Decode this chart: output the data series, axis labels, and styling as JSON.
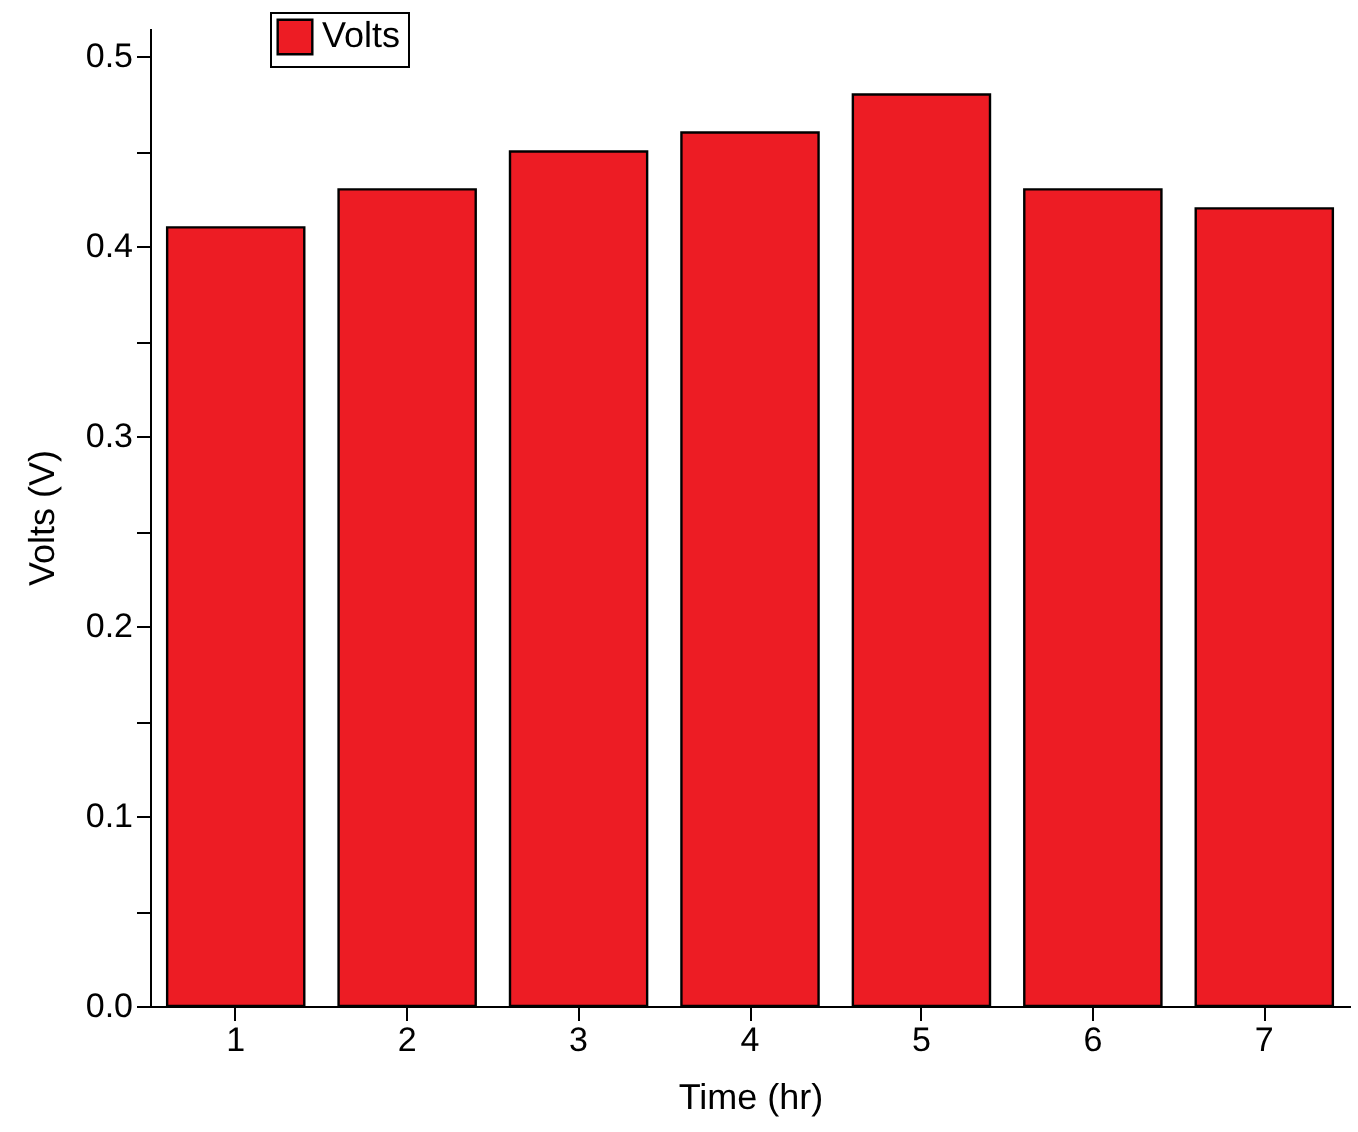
{
  "chart_data": {
    "type": "bar",
    "xlabel": "Time (hr)",
    "ylabel": "Volts (V)",
    "categories": [
      "1",
      "2",
      "3",
      "4",
      "5",
      "6",
      "7"
    ],
    "series": [
      {
        "name": "Volts",
        "color": "#ed1c24",
        "values": [
          0.41,
          0.43,
          0.45,
          0.46,
          0.48,
          0.43,
          0.42
        ]
      }
    ],
    "ylim": [
      0,
      0.515
    ],
    "yticks": [
      "0.0",
      {
        "value": 0.05,
        "label": null
      },
      0.1,
      {
        "value": 0.15,
        "label": null
      },
      0.2,
      {
        "value": 0.25,
        "label": null
      },
      0.3,
      {
        "value": 0.35,
        "label": null
      },
      0.4,
      {
        "value": 0.45,
        "label": null
      },
      0.5
    ],
    "legend": "top left",
    "grid": false
  }
}
